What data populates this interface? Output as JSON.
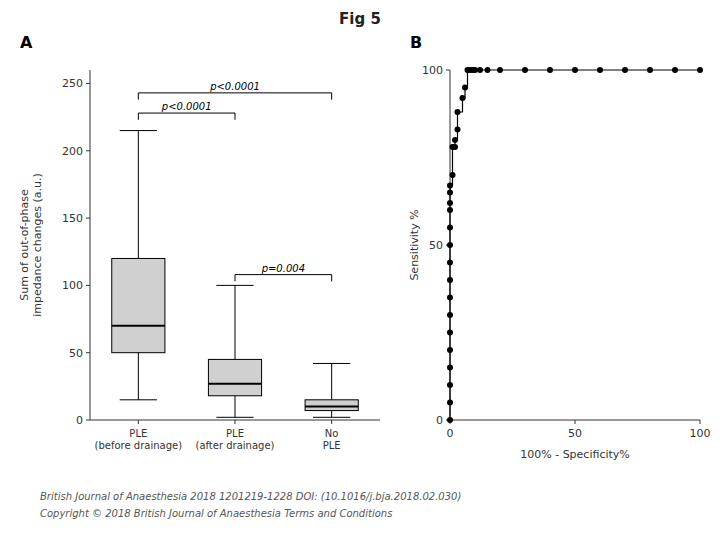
{
  "title": "Fig 5",
  "annotations": [
    "British Journal of Anaesthesia 2018 1201219-1228 DOI: (10.1016/j.bja.2018.02.030)",
    "Copyright © 2018 British Journal of Anaesthesia Terms and Conditions"
  ],
  "chart_data": [
    {
      "type": "box",
      "title": "A",
      "categories": [
        "PLE\n(before drainage)",
        "PLE\n(after drainage)",
        "No\nPLE"
      ],
      "median": [
        70,
        27,
        10
      ],
      "q1": [
        50,
        18,
        7
      ],
      "q3": [
        120,
        45,
        15
      ],
      "whisker_low": [
        15,
        2,
        2
      ],
      "whisker_high": [
        215,
        100,
        42
      ],
      "ylabel": "Sum of out-of-phase\nimpedance changes (a.u.)",
      "ylim": [
        0,
        260
      ],
      "yticks": [
        0,
        50,
        100,
        150,
        200,
        250
      ],
      "color": "#d0d0d0",
      "grid": false,
      "annotations": [
        {
          "x1": 0,
          "x2": 2,
          "y": 243,
          "label": "p<0.0001"
        },
        {
          "x1": 0,
          "x2": 1,
          "y": 228,
          "label": "p<0.0001"
        },
        {
          "x1": 1,
          "x2": 2,
          "y": 108,
          "label": "p=0.004"
        }
      ]
    },
    {
      "type": "step",
      "title": "B",
      "xlabel": "100% - Specificity%",
      "ylabel": "Sensitivity %",
      "x": [
        0,
        0,
        0,
        0,
        0,
        0,
        0,
        0,
        0,
        0,
        0,
        0,
        0,
        0,
        0,
        0,
        1,
        1,
        2,
        2,
        3,
        3,
        5,
        6,
        7,
        8,
        9,
        10,
        12,
        15,
        20,
        30,
        40,
        50,
        60,
        70,
        80,
        90,
        100
      ],
      "values": [
        0,
        5,
        10,
        15,
        20,
        25,
        30,
        35,
        40,
        45,
        50,
        55,
        60,
        62,
        65,
        67,
        70,
        78,
        78,
        80,
        83,
        88,
        92,
        95,
        100,
        100,
        100,
        100,
        100,
        100,
        100,
        100,
        100,
        100,
        100,
        100,
        100,
        100,
        100
      ],
      "xlim": [
        0,
        100
      ],
      "ylim": [
        0,
        100
      ],
      "xticks": [
        0,
        50,
        100
      ],
      "yticks": [
        0,
        50,
        100
      ],
      "color": "#000000",
      "marker": "circle",
      "grid": false
    }
  ]
}
